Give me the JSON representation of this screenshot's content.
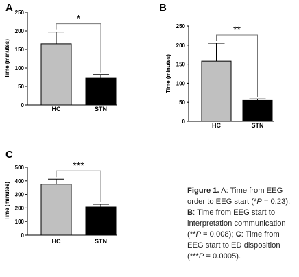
{
  "chart_data": [
    {
      "panel": "A",
      "type": "bar",
      "ylabel": "Time (minutes)",
      "ylim": [
        0,
        250
      ],
      "yticks": [
        0,
        50,
        100,
        150,
        200,
        250
      ],
      "categories": [
        "HC",
        "STN"
      ],
      "values": [
        165,
        72
      ],
      "error_plus": [
        32,
        10
      ],
      "bar_colors": [
        "#c0c0c0",
        "#000000"
      ],
      "significance": "*"
    },
    {
      "panel": "B",
      "type": "bar",
      "ylabel": "Time (minutes)",
      "ylim": [
        0,
        250
      ],
      "yticks": [
        0,
        50,
        100,
        150,
        200,
        250
      ],
      "categories": [
        "HC",
        "STN"
      ],
      "values": [
        158,
        55
      ],
      "error_plus": [
        47,
        4
      ],
      "bar_colors": [
        "#c0c0c0",
        "#000000"
      ],
      "significance": "**"
    },
    {
      "panel": "C",
      "type": "bar",
      "ylabel": "Time (minutes)",
      "ylim": [
        0,
        500
      ],
      "yticks": [
        0,
        100,
        200,
        300,
        400,
        500
      ],
      "categories": [
        "HC",
        "STN"
      ],
      "values": [
        375,
        207
      ],
      "error_plus": [
        38,
        20
      ],
      "bar_colors": [
        "#c0c0c0",
        "#000000"
      ],
      "significance": "***"
    }
  ],
  "caption": {
    "figure_label": "Figure 1.",
    "a_label": "A",
    "a_text": ": Time from EEG order to EEG start (*",
    "a_p": "P",
    "a_val": " = 0.23); ",
    "b_label": "B",
    "b_text": ": Time from EEG start to interpretation communication (**",
    "b_p": "P",
    "b_val": " = 0.008); ",
    "c_label": "C",
    "c_text": ": Time from EEG start to ED disposition (***",
    "c_p": "P",
    "c_val": " = 0.0005)."
  }
}
